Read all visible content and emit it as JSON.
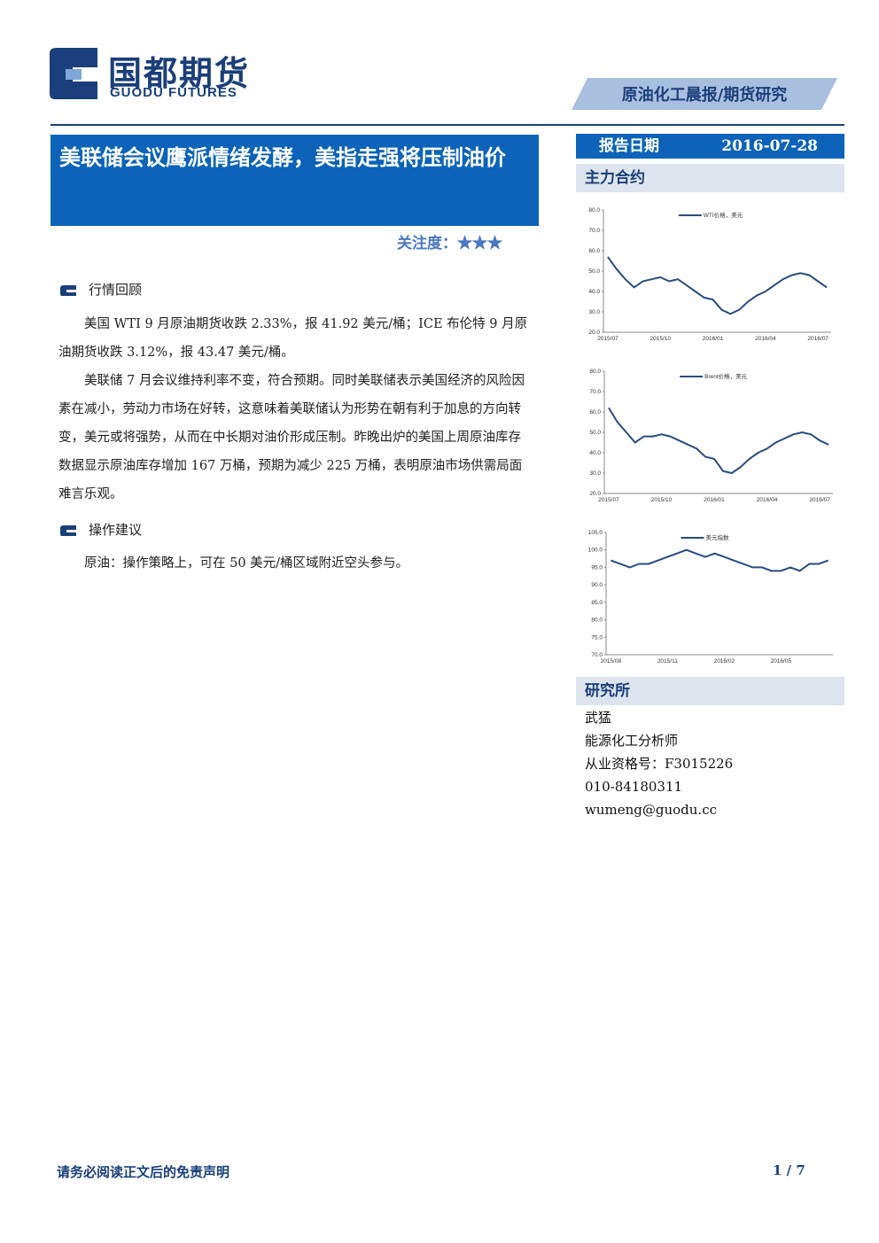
{
  "header": {
    "logo_cn": "国都期货",
    "logo_en": "GUODU FUTURES",
    "tag": "原油化工晨报/期货研究"
  },
  "title": "美联储会议鹰派情绪发酵，美指走强将压制油价",
  "attention": "关注度：★★★",
  "sections": [
    {
      "heading": "行情回顾",
      "paragraphs": [
        "美国 WTI 9 月原油期货收跌 2.33%，报 41.92 美元/桶；ICE 布伦特 9 月原油期货收跌 3.12%，报 43.47 美元/桶。",
        "美联储 7 月会议维持利率不变，符合预期。同时美联储表示美国经济的风险因素在减小，劳动力市场在好转，这意味着美联储认为形势在朝有利于加息的方向转变，美元或将强势，从而在中长期对油价形成压制。昨晚出炉的美国上周原油库存数据显示原油库存增加 167 万桶，预期为减少 225 万桶，表明原油市场供需局面难言乐观。"
      ]
    },
    {
      "heading": "操作建议",
      "paragraphs": [
        "原油：操作策略上，可在 50 美元/桶区域附近空头参与。"
      ]
    }
  ],
  "sidebar": {
    "date_label": "报告日期",
    "date": "2016-07-28",
    "contracts_heading": "主力合约",
    "research_heading": "研究所",
    "analyst": [
      "武猛",
      "能源化工分析师",
      "从业资格号：F3015226",
      "010-84180311",
      "wumeng@guodu.cc"
    ]
  },
  "footer": {
    "disclaimer": "请务必阅读正文后的免责声明",
    "page": "1 / 7"
  },
  "chart_data": [
    {
      "type": "line",
      "categories": [
        "2015/07",
        null,
        null,
        null,
        null,
        null,
        "2015/10",
        null,
        null,
        null,
        null,
        null,
        "2016/01",
        null,
        null,
        null,
        null,
        null,
        "2016/04",
        null,
        null,
        null,
        null,
        null,
        "2016/07",
        null
      ],
      "series": [
        {
          "name": "WTI价格，美元",
          "color": "#2b4b80",
          "values": [
            57,
            51,
            46,
            42,
            45,
            46,
            47,
            45,
            46,
            43,
            40,
            37,
            36,
            31,
            29,
            31,
            35,
            38,
            40,
            43,
            46,
            48,
            49,
            48,
            45,
            42
          ]
        }
      ],
      "ylim": [
        20,
        80
      ],
      "yticks": [
        {
          "value": 20,
          "label": "20.0"
        },
        {
          "value": 30,
          "label": "30.0"
        },
        {
          "value": 40,
          "label": "40.0"
        },
        {
          "value": 50,
          "label": "50.0"
        },
        {
          "value": 60,
          "label": "60.0"
        },
        {
          "value": 70,
          "label": "70.0"
        },
        {
          "value": 80,
          "label": "80.0"
        }
      ]
    },
    {
      "type": "line",
      "categories": [
        "2015/07",
        null,
        null,
        null,
        null,
        null,
        "2015/10",
        null,
        null,
        null,
        null,
        null,
        "2016/01",
        null,
        null,
        null,
        null,
        null,
        "2016/04",
        null,
        null,
        null,
        null,
        null,
        "2016/07",
        null
      ],
      "series": [
        {
          "name": "Brent价格，美元",
          "color": "#2b4b80",
          "values": [
            62,
            55,
            50,
            45,
            48,
            48,
            49,
            48,
            46,
            44,
            42,
            38,
            37,
            31,
            30,
            33,
            37,
            40,
            42,
            45,
            47,
            49,
            50,
            49,
            46,
            44
          ]
        }
      ],
      "ylim": [
        20,
        80
      ],
      "yticks": [
        {
          "value": 20,
          "label": "20.0"
        },
        {
          "value": 30,
          "label": "30.0"
        },
        {
          "value": 40,
          "label": "40.0"
        },
        {
          "value": 50,
          "label": "50.0"
        },
        {
          "value": 60,
          "label": "60.0"
        },
        {
          "value": 70,
          "label": "70.0"
        },
        {
          "value": 80,
          "label": "80.0"
        }
      ]
    },
    {
      "type": "line",
      "categories": [
        "2015/08",
        null,
        null,
        null,
        null,
        null,
        "2015/11",
        null,
        null,
        null,
        null,
        null,
        "2016/02",
        null,
        null,
        null,
        null,
        null,
        "2016/05",
        null,
        null,
        null,
        null,
        null
      ],
      "series": [
        {
          "name": "美元指数",
          "color": "#2b4b80",
          "values": [
            97,
            96,
            95,
            96,
            96,
            97,
            98,
            99,
            100,
            99,
            98,
            99,
            98,
            97,
            96,
            95,
            95,
            94,
            94,
            95,
            94,
            96,
            96,
            97
          ]
        }
      ],
      "ylim": [
        70,
        105
      ],
      "yticks": [
        {
          "value": 70,
          "label": "70.0"
        },
        {
          "value": 75,
          "label": "75.0"
        },
        {
          "value": 80,
          "label": "80.0"
        },
        {
          "value": 85,
          "label": "85.0"
        },
        {
          "value": 90,
          "label": "90.0"
        },
        {
          "value": 95,
          "label": "95.0"
        },
        {
          "value": 100,
          "label": "100.0"
        },
        {
          "value": 105,
          "label": "105.0"
        }
      ]
    }
  ]
}
